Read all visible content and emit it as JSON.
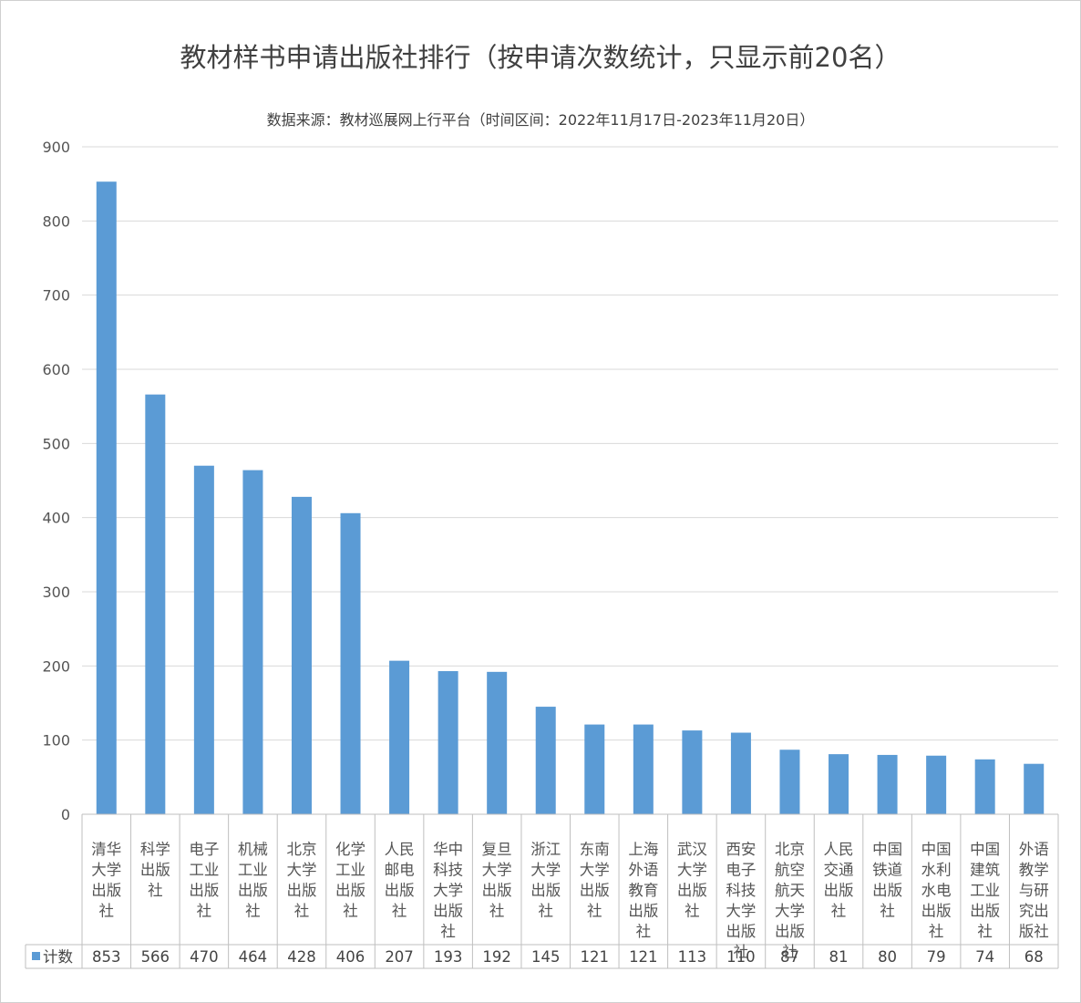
{
  "chart_data": {
    "type": "bar",
    "title": "教材样书申请出版社排行（按申请次数统计，只显示前20名）",
    "subtitle": "数据来源：教材巡展网上行平台（时间区间：2022年11月17日-2023年11月20日）",
    "categories": [
      [
        "清华",
        "大学",
        "出版",
        "社"
      ],
      [
        "科学",
        "出版",
        "社"
      ],
      [
        "电子",
        "工业",
        "出版",
        "社"
      ],
      [
        "机械",
        "工业",
        "出版",
        "社"
      ],
      [
        "北京",
        "大学",
        "出版",
        "社"
      ],
      [
        "化学",
        "工业",
        "出版",
        "社"
      ],
      [
        "人民",
        "邮电",
        "出版",
        "社"
      ],
      [
        "华中",
        "科技",
        "大学",
        "出版",
        "社"
      ],
      [
        "复旦",
        "大学",
        "出版",
        "社"
      ],
      [
        "浙江",
        "大学",
        "出版",
        "社"
      ],
      [
        "东南",
        "大学",
        "出版",
        "社"
      ],
      [
        "上海",
        "外语",
        "教育",
        "出版",
        "社"
      ],
      [
        "武汉",
        "大学",
        "出版",
        "社"
      ],
      [
        "西安",
        "电子",
        "科技",
        "大学",
        "出版",
        "社"
      ],
      [
        "北京",
        "航空",
        "航天",
        "大学",
        "出版",
        "社"
      ],
      [
        "人民",
        "交通",
        "出版",
        "社"
      ],
      [
        "中国",
        "铁道",
        "出版",
        "社"
      ],
      [
        "中国",
        "水利",
        "水电",
        "出版",
        "社"
      ],
      [
        "中国",
        "建筑",
        "工业",
        "出版",
        "社"
      ],
      [
        "外语",
        "教学",
        "与研",
        "究出",
        "版社"
      ]
    ],
    "series": [
      {
        "name": "计数",
        "values": [
          853,
          566,
          470,
          464,
          428,
          406,
          207,
          193,
          192,
          145,
          121,
          121,
          113,
          110,
          87,
          81,
          80,
          79,
          74,
          68
        ]
      }
    ],
    "value_labels": [
      "853",
      "566",
      "470",
      "464",
      "428",
      "406",
      "207",
      "193",
      "192",
      "145",
      "121",
      "121",
      "113",
      "110",
      "87",
      "81",
      "80",
      "79",
      "74",
      "68"
    ],
    "ylim": [
      0,
      900
    ],
    "yticks": [
      "0",
      "100",
      "200",
      "300",
      "400",
      "500",
      "600",
      "700",
      "800",
      "900"
    ],
    "grid": true,
    "legend_placement": "data-table-left",
    "bar_color": "#5B9BD5"
  }
}
